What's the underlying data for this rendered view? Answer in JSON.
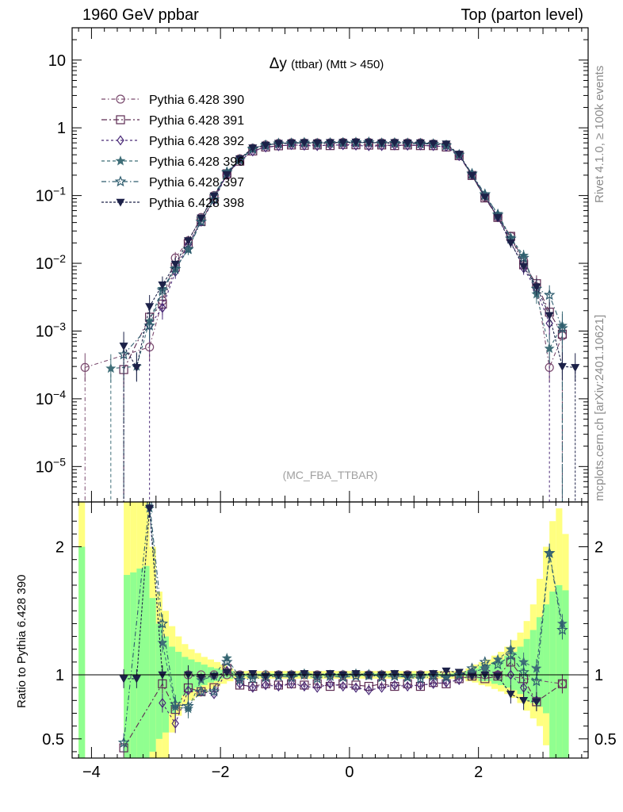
{
  "header": {
    "left": "1960 GeV ppbar",
    "right": "Top (parton level)"
  },
  "side_labels": {
    "rivet": "Rivet 4.1.0, ≥ 100k events",
    "mcplots": "mcplots.cern.ch [arXiv:2401.10621]"
  },
  "ratio_ylabel": "Ratio to Pythia 6.428 390",
  "chart_data": {
    "type": "line",
    "title_symbol": "Δy",
    "title_rest": "(ttbar) (Mtt > 450)",
    "watermark": "(MC_FBA_TTBAR)",
    "main": {
      "yscale": "log",
      "ylim": [
        3e-06,
        30
      ],
      "y_ticks": [
        {
          "v": 10,
          "m": "10",
          "e": ""
        },
        {
          "v": 1,
          "m": "1",
          "e": ""
        },
        {
          "v": 0.1,
          "m": "10",
          "e": "−1"
        },
        {
          "v": 0.01,
          "m": "10",
          "e": "−2"
        },
        {
          "v": 0.001,
          "m": "10",
          "e": "−3"
        },
        {
          "v": 0.0001,
          "m": "10",
          "e": "−4"
        },
        {
          "v": 1e-05,
          "m": "10",
          "e": "−5"
        }
      ]
    },
    "ratio": {
      "ylim": [
        0.35,
        2.35
      ],
      "y_ticks": [
        0.5,
        1,
        2
      ],
      "y_tick_labels": [
        "0.5",
        "1",
        "2"
      ]
    },
    "xlim": [
      -4.3,
      3.7
    ],
    "x_ticks": [
      -4,
      -2,
      0,
      2
    ],
    "x_tick_labels": [
      "−4",
      "−2",
      "0",
      "2"
    ],
    "legend": {
      "placement": "top-left"
    },
    "central_x": [
      -2.5,
      -2.3,
      -2.1,
      -1.9,
      -1.7,
      -1.5,
      -1.3,
      -1.1,
      -0.9,
      -0.7,
      -0.5,
      -0.3,
      -0.1,
      0.1,
      0.3,
      0.5,
      0.7,
      0.9,
      1.1,
      1.3,
      1.5,
      1.7,
      1.9,
      2.1,
      2.3
    ],
    "central_shape": [
      0.022,
      0.048,
      0.1,
      0.2,
      0.35,
      0.5,
      0.56,
      0.59,
      0.6,
      0.6,
      0.6,
      0.6,
      0.61,
      0.61,
      0.61,
      0.6,
      0.6,
      0.6,
      0.6,
      0.58,
      0.56,
      0.4,
      0.2,
      0.095,
      0.048
    ],
    "band_edges": [
      -4.3,
      -4.2,
      -4.1,
      -3.6,
      -3.5,
      -3.4,
      -3.3,
      -3.2,
      -3.1,
      -3.0,
      -2.9,
      -2.8,
      -2.7,
      -2.6,
      -2.5,
      -2.4,
      -2.3,
      -2.2,
      -2.1,
      -2.0,
      -1.9,
      -1.8,
      1.8,
      1.9,
      2.0,
      2.1,
      2.2,
      2.3,
      2.4,
      2.5,
      2.6,
      2.7,
      2.8,
      2.9,
      3.0,
      3.1,
      3.2,
      3.3,
      3.4
    ],
    "band_green_lo": [
      0.0,
      0.3,
      0.0,
      0.0,
      0.3,
      0.3,
      0.3,
      0.3,
      0.4,
      0.5,
      0.55,
      0.7,
      0.78,
      0.84,
      0.87,
      0.9,
      0.92,
      0.94,
      0.95,
      0.97,
      0.97,
      0.99,
      0.97,
      0.97,
      0.95,
      0.95,
      0.93,
      0.92,
      0.9,
      0.88,
      0.85,
      0.8,
      0.78,
      0.75,
      0.7,
      0.3,
      0.3,
      0.3
    ],
    "band_green_hi": [
      0.0,
      2.0,
      0.0,
      0.0,
      1.78,
      1.8,
      1.83,
      1.85,
      1.6,
      1.4,
      1.3,
      1.22,
      1.18,
      1.14,
      1.12,
      1.1,
      1.08,
      1.06,
      1.05,
      1.04,
      1.03,
      1.01,
      1.03,
      1.05,
      1.07,
      1.08,
      1.1,
      1.12,
      1.15,
      1.18,
      1.22,
      1.28,
      1.35,
      1.45,
      1.55,
      1.65,
      1.7,
      1.66
    ],
    "band_yellow_lo": [
      0.0,
      0.3,
      0.0,
      0.0,
      0.3,
      0.3,
      0.3,
      0.3,
      0.3,
      0.3,
      0.3,
      0.55,
      0.68,
      0.76,
      0.8,
      0.83,
      0.86,
      0.89,
      0.91,
      0.93,
      0.95,
      0.97,
      0.95,
      0.94,
      0.92,
      0.91,
      0.89,
      0.87,
      0.85,
      0.82,
      0.78,
      0.72,
      0.66,
      0.6,
      0.45,
      0.3,
      0.3,
      0.3
    ],
    "band_yellow_hi": [
      0.0,
      2.4,
      0.0,
      0.0,
      2.4,
      2.4,
      2.4,
      2.4,
      2.0,
      1.65,
      1.5,
      1.38,
      1.3,
      1.24,
      1.2,
      1.17,
      1.14,
      1.12,
      1.1,
      1.08,
      1.05,
      1.03,
      1.05,
      1.08,
      1.1,
      1.12,
      1.15,
      1.18,
      1.22,
      1.27,
      1.33,
      1.42,
      1.55,
      1.75,
      2.0,
      2.2,
      2.3,
      2.1
    ],
    "series": [
      {
        "name": "Pythia 6.428 390",
        "color": "#7a4a6e",
        "marker": "circle",
        "dash": "5,3,1.5,3",
        "ratio": [
          0.98,
          0.99,
          1.0,
          1.0,
          1.0,
          1.0,
          1.0,
          1.0,
          1.0,
          1.0,
          1.0,
          1.0,
          1.0,
          1.0,
          1.0,
          1.0,
          1.0,
          1.0,
          1.0,
          1.0,
          1.0,
          1.0,
          1.0,
          1.0,
          1.0
        ],
        "left_tail": [
          [
            -4.1,
            0.00029
          ],
          [
            -3.1,
            0.00058
          ],
          [
            -2.9,
            0.0028
          ],
          [
            -2.7,
            0.012
          ]
        ],
        "right_tail": [
          [
            2.5,
            0.025
          ],
          [
            2.7,
            0.011
          ],
          [
            2.9,
            0.0045
          ],
          [
            3.1,
            0.00029
          ],
          [
            3.3,
            0.00085
          ]
        ],
        "tail_ratio": [
          [
            3.3,
            0.93
          ]
        ]
      },
      {
        "name": "Pythia 6.428 391",
        "color": "#5c2a52",
        "marker": "square",
        "dash": "7,3,2,3",
        "ratio": [
          0.88,
          0.86,
          0.9,
          1.05,
          0.92,
          0.91,
          0.93,
          0.92,
          0.93,
          0.92,
          0.93,
          0.91,
          0.93,
          0.92,
          0.91,
          0.93,
          0.91,
          0.93,
          0.91,
          0.94,
          0.93,
          0.97,
          0.99,
          0.97,
          0.99
        ],
        "left_tail": [
          [
            -3.5,
            0.00027
          ],
          [
            -3.1,
            0.0016
          ],
          [
            -2.9,
            0.0025
          ],
          [
            -2.7,
            0.0088
          ]
        ],
        "right_tail": [
          [
            2.5,
            0.025
          ],
          [
            2.7,
            0.0095
          ],
          [
            2.9,
            0.005
          ],
          [
            3.1,
            0.0019
          ],
          [
            3.3,
            0.0009
          ]
        ],
        "tail_ratio": [
          [
            -3.5,
            0.43
          ],
          [
            -2.9,
            0.93
          ],
          [
            -2.7,
            0.73
          ],
          [
            2.5,
            1.1
          ],
          [
            2.7,
            0.97
          ],
          [
            2.9,
            0.79
          ],
          [
            3.3,
            0.93
          ]
        ]
      },
      {
        "name": "Pythia 6.428 392",
        "color": "#4a2a78",
        "marker": "diamond",
        "dash": "3,3",
        "ratio": [
          0.86,
          0.86,
          0.85,
          1.03,
          0.93,
          0.9,
          0.92,
          0.91,
          0.93,
          0.91,
          0.9,
          0.93,
          0.91,
          0.9,
          0.88,
          0.9,
          0.92,
          0.91,
          0.92,
          0.93,
          0.94,
          0.96,
          1.02,
          1.05,
          1.0
        ],
        "left_tail": [
          [
            -3.1,
            0.0012
          ],
          [
            -2.9,
            0.0022
          ],
          [
            -2.7,
            0.0075
          ]
        ],
        "right_tail": [
          [
            2.5,
            0.021
          ],
          [
            2.7,
            0.0085
          ],
          [
            2.9,
            0.004
          ],
          [
            3.1,
            0.0013
          ]
        ],
        "tail_ratio": [
          [
            -2.9,
            0.78
          ],
          [
            -2.7,
            0.62
          ],
          [
            2.5,
            1.0
          ],
          [
            2.7,
            0.9
          ],
          [
            2.9,
            0.8
          ]
        ]
      },
      {
        "name": "Pythia 6.428 396",
        "color": "#3f6e78",
        "marker": "star",
        "dash": "4,3",
        "ratio": [
          0.72,
          0.95,
          0.99,
          1.13,
          0.98,
          0.99,
          1.0,
          0.99,
          1.0,
          1.01,
          0.99,
          1.0,
          1.0,
          1.01,
          0.99,
          1.0,
          1.0,
          0.98,
          0.99,
          1.0,
          0.99,
          1.0,
          1.02,
          1.05,
          1.12
        ],
        "left_tail": [
          [
            -3.7,
            0.00028
          ],
          [
            -3.3,
            0.0003
          ],
          [
            -3.1,
            0.0014
          ],
          [
            -2.9,
            0.0042
          ],
          [
            -2.7,
            0.0085
          ]
        ],
        "right_tail": [
          [
            2.5,
            0.024
          ],
          [
            2.7,
            0.013
          ],
          [
            2.9,
            0.0035
          ],
          [
            3.1,
            0.00055
          ],
          [
            3.3,
            0.0012
          ]
        ],
        "tail_ratio": [
          [
            -3.1,
            2.3
          ],
          [
            -2.9,
            1.25
          ],
          [
            -2.7,
            0.75
          ],
          [
            2.5,
            1.2
          ],
          [
            2.7,
            1.1
          ],
          [
            2.9,
            1.05
          ],
          [
            3.1,
            1.95
          ],
          [
            3.3,
            1.4
          ]
        ]
      },
      {
        "name": "Pythia 6.428 397",
        "color": "#2e5c6e",
        "marker": "star-open",
        "dash": "6,3,1.5,3",
        "ratio": [
          0.74,
          0.86,
          0.87,
          1.1,
          0.96,
          0.97,
          0.98,
          0.99,
          0.98,
          1.0,
          0.97,
          0.99,
          0.98,
          0.99,
          1.0,
          0.98,
          0.99,
          0.98,
          0.97,
          0.99,
          0.98,
          1.0,
          1.05,
          1.1,
          1.08
        ],
        "left_tail": [
          [
            -3.5,
            0.00045
          ],
          [
            -3.1,
            0.0012
          ],
          [
            -2.9,
            0.004
          ],
          [
            -2.7,
            0.0082
          ]
        ],
        "right_tail": [
          [
            2.5,
            0.023
          ],
          [
            2.7,
            0.012
          ],
          [
            2.9,
            0.0042
          ],
          [
            3.1,
            0.0034
          ],
          [
            3.3,
            0.0011
          ]
        ],
        "tail_ratio": [
          [
            -3.5,
            0.47
          ],
          [
            -3.1,
            2.35
          ],
          [
            -2.9,
            1.4
          ],
          [
            -2.7,
            0.77
          ],
          [
            2.5,
            1.15
          ],
          [
            2.7,
            1.02
          ],
          [
            2.9,
            0.95
          ],
          [
            3.1,
            1.95
          ],
          [
            3.3,
            1.35
          ]
        ]
      },
      {
        "name": "Pythia 6.428 398",
        "color": "#1c2148",
        "marker": "triangle-down",
        "dash": "3,2",
        "ratio": [
          0.98,
          0.97,
          0.99,
          1.02,
          1.0,
          1.01,
          0.99,
          1.0,
          1.0,
          1.01,
          1.0,
          1.01,
          1.0,
          1.01,
          1.0,
          1.0,
          1.01,
          1.0,
          1.0,
          1.01,
          1.03,
          1.02,
          0.99,
          1.0,
          0.99
        ],
        "left_tail": [
          [
            -3.5,
            0.0006
          ],
          [
            -3.3,
            0.00029
          ],
          [
            -3.1,
            0.0023
          ],
          [
            -2.9,
            0.0048
          ],
          [
            -2.7,
            0.0097
          ]
        ],
        "right_tail": [
          [
            2.5,
            0.02
          ],
          [
            2.7,
            0.009
          ],
          [
            2.9,
            0.0045
          ],
          [
            3.1,
            0.0017
          ],
          [
            3.3,
            0.0003
          ],
          [
            3.5,
            0.00029
          ]
        ],
        "tail_ratio": [
          [
            -3.5,
            0.97
          ],
          [
            -3.3,
            0.97
          ],
          [
            -3.1,
            2.3
          ],
          [
            -2.9,
            1.0
          ],
          [
            2.5,
            0.85
          ],
          [
            2.7,
            0.8
          ],
          [
            2.9,
            0.79
          ]
        ]
      }
    ]
  }
}
